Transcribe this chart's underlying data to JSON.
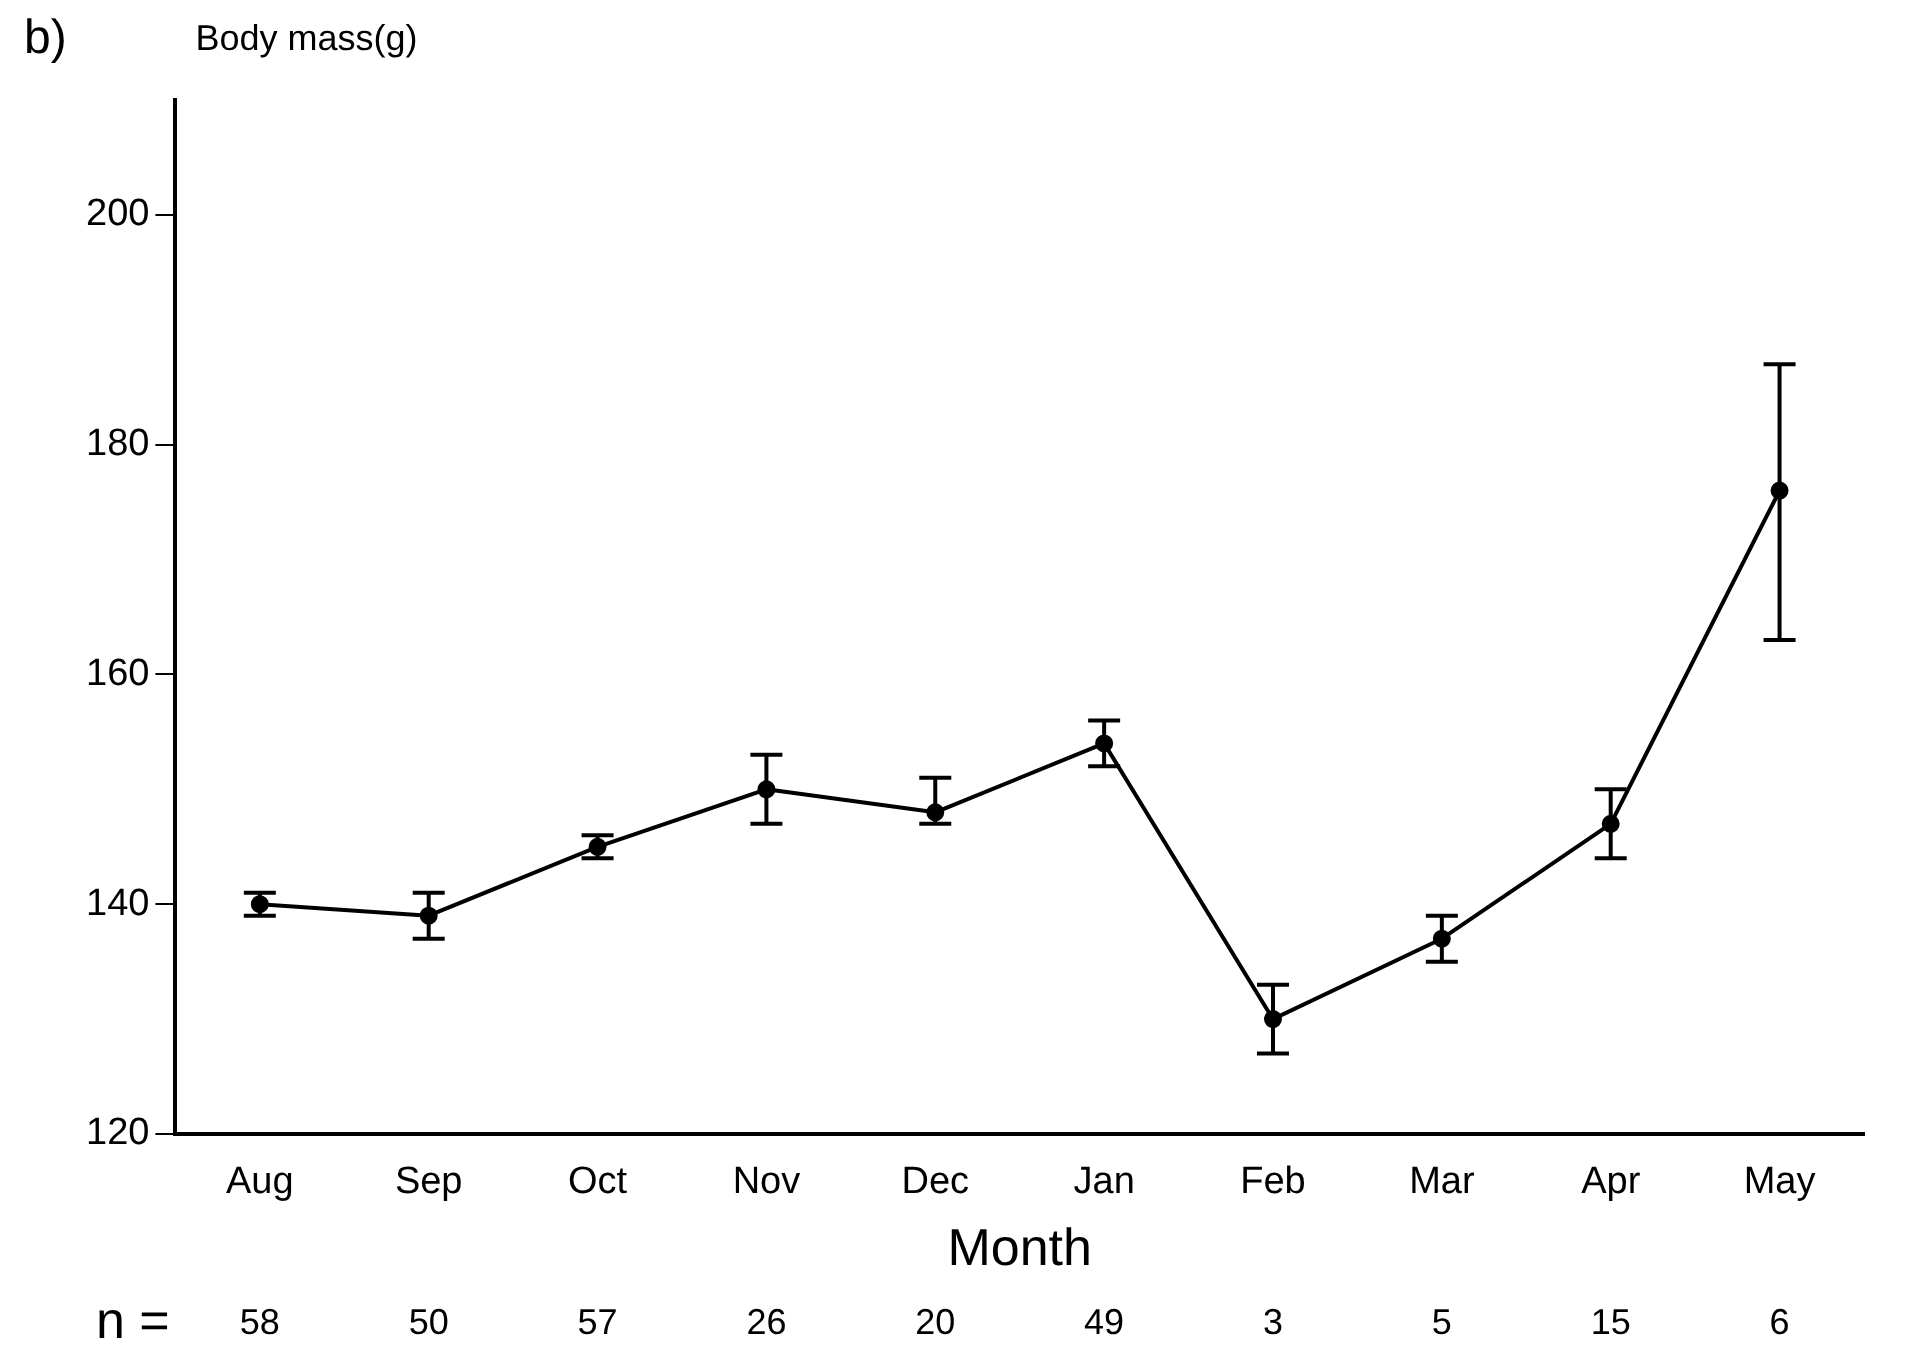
{
  "chart_data": {
    "type": "line",
    "xlabel": "Month",
    "ylabel": "Body mass(g)",
    "categories": [
      "Aug",
      "Sep",
      "Oct",
      "Nov",
      "Dec",
      "Jan",
      "Feb",
      "Mar",
      "Apr",
      "May"
    ],
    "series": [
      {
        "color": "#000000",
        "values": [
          140,
          139,
          145,
          150,
          148,
          154,
          130,
          137,
          147,
          176
        ],
        "errors": [
          1,
          2,
          1,
          3,
          [
            147,
            151
          ],
          2,
          3,
          2,
          3,
          [
            163,
            187
          ]
        ]
      }
    ],
    "ylim": [
      120,
      210
    ],
    "yticks": [
      120,
      140,
      160,
      180,
      200
    ],
    "marker": "circle",
    "line_style": "solid",
    "annotations": [
      "b)",
      "n =",
      "58",
      "50",
      "57",
      "26",
      "20",
      "49",
      "3",
      "5",
      "15",
      "6"
    ]
  }
}
